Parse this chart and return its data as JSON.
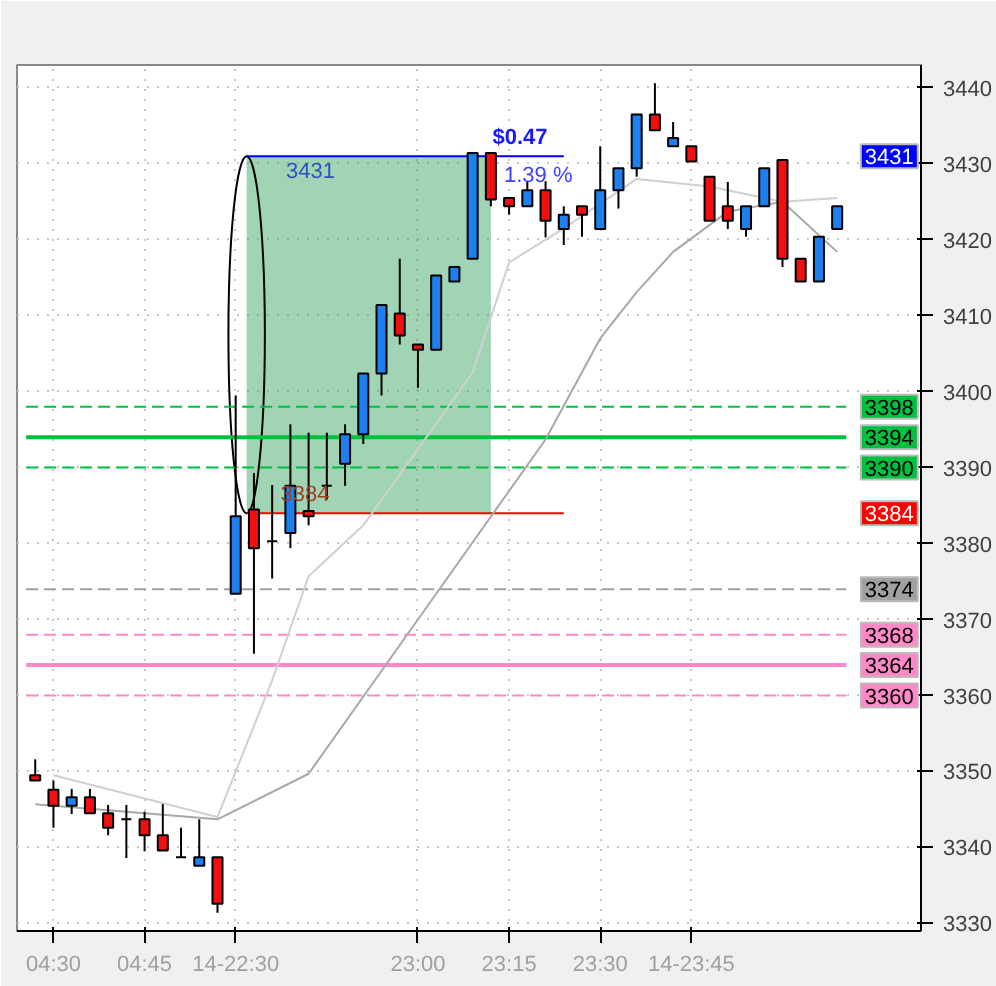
{
  "chart_data": {
    "type": "candlestick",
    "categories": [
      null,
      "04:30",
      null,
      null,
      null,
      null,
      "04:45",
      null,
      null,
      null,
      null,
      "14-22:30",
      null,
      null,
      null,
      null,
      null,
      null,
      null,
      null,
      null,
      "23:00",
      null,
      null,
      null,
      null,
      "23:15",
      null,
      null,
      null,
      null,
      "23:30",
      null,
      null,
      null,
      null,
      "14-23:45",
      null,
      null,
      null,
      null,
      null,
      null,
      null,
      null
    ],
    "ohlc": [
      [
        3349.5,
        3351.6,
        3348.8,
        3348.8
      ],
      [
        3347.6,
        3348.8,
        3342.6,
        3345.5
      ],
      [
        3345.5,
        3347.7,
        3344.4,
        3346.6
      ],
      [
        3346.6,
        3347.7,
        3344.5,
        3344.5
      ],
      [
        3344.5,
        3345.6,
        3341.6,
        3342.6
      ],
      [
        3343.7,
        3345.6,
        3338.6,
        3343.7
      ],
      [
        3343.7,
        3344.7,
        3339.5,
        3341.6
      ],
      [
        3341.6,
        3345.7,
        3339.6,
        3339.6
      ],
      [
        3338.7,
        3342.6,
        3338.7,
        3338.7
      ],
      [
        3337.6,
        3343.7,
        3337.6,
        3338.7
      ],
      [
        3338.7,
        3338.7,
        3331.4,
        3332.6
      ],
      [
        3373.4,
        3399.5,
        3373.4,
        3383.6
      ],
      [
        3384.5,
        3389.3,
        3365.5,
        3379.4
      ],
      [
        3380.3,
        3387.7,
        3375.4,
        3380.3
      ],
      [
        3381.4,
        3395.7,
        3379.4,
        3387.6
      ],
      [
        3384.3,
        3394.6,
        3382.4,
        3383.6
      ],
      [
        3387.6,
        3394.6,
        3385.8,
        3387.6
      ],
      [
        3390.5,
        3395.7,
        3387.6,
        3394.4
      ],
      [
        3394.4,
        3402.4,
        3393.1,
        3402.4
      ],
      [
        3402.4,
        3411.4,
        3399.5,
        3411.4
      ],
      [
        3410.3,
        3417.5,
        3406.2,
        3407.4
      ],
      [
        3406.2,
        3406.2,
        3400.5,
        3405.5
      ],
      [
        3405.5,
        3415.3,
        3405.5,
        3415.3
      ],
      [
        3414.5,
        3416.4,
        3414.5,
        3416.4
      ],
      [
        3417.5,
        3431.4,
        3417.5,
        3431.4
      ],
      [
        3431.4,
        3431.4,
        3424.4,
        3425.3
      ],
      [
        3425.5,
        3425.5,
        3423.3,
        3424.4
      ],
      [
        3424.4,
        3427.7,
        3424.4,
        3426.5
      ],
      [
        3426.5,
        3427.7,
        3420.3,
        3422.5
      ],
      [
        3421.4,
        3424.4,
        3419.3,
        3423.3
      ],
      [
        3424.4,
        3424.4,
        3420.4,
        3423.3
      ],
      [
        3421.4,
        3432.3,
        3421.4,
        3426.5
      ],
      [
        3426.5,
        3429.4,
        3424.1,
        3429.4
      ],
      [
        3429.4,
        3436.5,
        3428.3,
        3436.5
      ],
      [
        3436.5,
        3440.6,
        3434.4,
        3434.4
      ],
      [
        3432.3,
        3435.5,
        3432.3,
        3433.4
      ],
      [
        3432.3,
        3432.3,
        3430.3,
        3430.3
      ],
      [
        3428.3,
        3428.3,
        3422.5,
        3422.5
      ],
      [
        3424.4,
        3427.6,
        3421.4,
        3422.5
      ],
      [
        3421.4,
        3424.4,
        3420.4,
        3424.4
      ],
      [
        3424.4,
        3429.4,
        3424.4,
        3429.4
      ],
      [
        3430.5,
        3430.5,
        3416.4,
        3417.5
      ],
      [
        3417.5,
        3417.5,
        3414.5,
        3414.5
      ],
      [
        3414.5,
        3420.4,
        3414.5,
        3420.4
      ],
      [
        3421.4,
        3424.4,
        3421.4,
        3424.4
      ]
    ],
    "series": [
      {
        "type": "line",
        "color": "#d0d0d0",
        "values": [
          null,
          3349.5,
          null,
          null,
          null,
          null,
          null,
          null,
          null,
          null,
          3344,
          null,
          null,
          3362,
          null,
          3375.7,
          null,
          null,
          3382.4,
          null,
          null,
          null,
          null,
          null,
          3402.5,
          null,
          3417,
          null,
          null,
          3421.5,
          null,
          null,
          null,
          3428,
          null,
          null,
          null,
          3427,
          null,
          null,
          null,
          3425,
          null,
          null,
          3425.5
        ]
      },
      {
        "type": "line",
        "color": "#a8a8a8",
        "values": [
          3345.7,
          null,
          null,
          null,
          null,
          null,
          null,
          null,
          null,
          null,
          3343.7,
          null,
          null,
          null,
          null,
          3349.7,
          null,
          null,
          null,
          null,
          null,
          null,
          3373.4,
          null,
          null,
          null,
          null,
          null,
          3393.7,
          null,
          null,
          3407,
          null,
          3413.1,
          null,
          3418.4,
          null,
          null,
          3423.7,
          null,
          null,
          3425,
          null,
          null,
          3418.4
        ]
      }
    ],
    "ylim": [
      3329,
      3443
    ],
    "yticks": [
      3330,
      3340,
      3350,
      3360,
      3370,
      3380,
      3390,
      3400,
      3410,
      3420,
      3430,
      3440
    ],
    "ref_lines": [
      {
        "axis": "y",
        "value": 3431,
        "color": "#0000ff",
        "line_style": "solid"
      },
      {
        "axis": "y",
        "value": 3384,
        "color": "#ff0000",
        "line_style": "solid"
      },
      {
        "axis": "y",
        "value": 3398,
        "label": "3398",
        "color": "#00c040",
        "line_style": "dashed"
      },
      {
        "axis": "y",
        "value": 3394,
        "label": "3394",
        "color": "#00c040",
        "line_style": "solid"
      },
      {
        "axis": "y",
        "value": 3390,
        "label": "3390",
        "color": "#00c040",
        "line_style": "dashed"
      },
      {
        "axis": "y",
        "value": 3374,
        "label": "3374",
        "color": "#a0a0a0",
        "line_style": "dashed"
      },
      {
        "axis": "y",
        "value": 3368,
        "label": "3368",
        "color": "#ff88c8",
        "line_style": "dashed"
      },
      {
        "axis": "y",
        "value": 3364,
        "label": "3364",
        "color": "#ff88c8",
        "line_style": "solid"
      },
      {
        "axis": "y",
        "value": 3360,
        "label": "3360",
        "color": "#ff88c8",
        "line_style": "dashed"
      }
    ],
    "bands": [
      {
        "axis": "y",
        "from": 3384,
        "to": 3431,
        "color": "#2ca05a"
      }
    ],
    "annotations": [
      "3431",
      "3384",
      "$0.47",
      "1.39 %",
      "3431",
      "3384"
    ],
    "grid": true
  }
}
